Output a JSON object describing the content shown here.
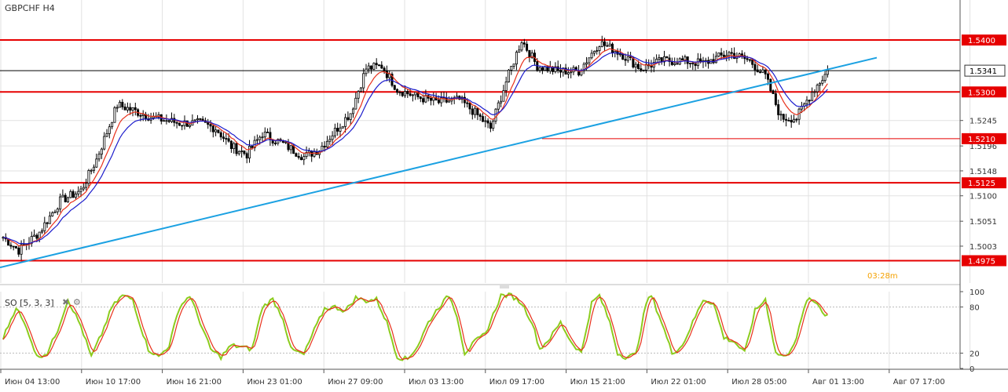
{
  "symbol_title": "GBPCHF H4",
  "timer": "03:28m",
  "indicator": {
    "label": "SO [5, 3, 3]",
    "close_icon": "close-icon",
    "gear_icon": "gear-icon"
  },
  "colors": {
    "grid": "#e2e2e2",
    "candle": "#000000",
    "ma_fast": "#e8301a",
    "ma_slow": "#1c1ccc",
    "level": "#e60000",
    "trendline": "#1ba1e2",
    "price_line": "#000000",
    "so_main": "#8ccc1e",
    "so_signal": "#e8301a",
    "timer": "#f4a100"
  },
  "chart_data": {
    "type": "candlestick",
    "title": "GBPCHF H4",
    "price_ylim": [
      1.4935,
      1.5465
    ],
    "y_ticks": [
      "1.5003",
      "1.5051",
      "1.5100",
      "1.5148",
      "1.5196",
      "1.5245"
    ],
    "x_ticks": [
      "Июн 04 13:00",
      "Июн 10 17:00",
      "Июн 16 21:00",
      "Июн 23 01:00",
      "Июн 27 09:00",
      "Июл 03 13:00",
      "Июл 09 17:00",
      "Июл 15 21:00",
      "Июл 22 01:00",
      "Июл 28 05:00",
      "Авг 01 13:00",
      "Авг 07 17:00"
    ],
    "current_price": {
      "label": "1.5341",
      "value": 1.5341
    },
    "levels": [
      {
        "label": "1.5400",
        "value": 1.54
      },
      {
        "label": "1.5300",
        "value": 1.53
      },
      {
        "label": "1.5210",
        "value": 1.521
      },
      {
        "label": "1.5125",
        "value": 1.5125
      },
      {
        "label": "1.4975",
        "value": 1.4975
      }
    ],
    "trendline": {
      "start": [
        0,
        1.4962
      ],
      "end": [
        1.0,
        1.5366
      ]
    },
    "anchors": [
      [
        0,
        1.502
      ],
      [
        6,
        1.4995
      ],
      [
        14,
        1.503
      ],
      [
        22,
        1.509
      ],
      [
        30,
        1.511
      ],
      [
        36,
        1.517
      ],
      [
        44,
        1.5275
      ],
      [
        50,
        1.5265
      ],
      [
        58,
        1.525
      ],
      [
        68,
        1.524
      ],
      [
        76,
        1.524
      ],
      [
        82,
        1.523
      ],
      [
        88,
        1.5195
      ],
      [
        94,
        1.518
      ],
      [
        100,
        1.522
      ],
      [
        108,
        1.52
      ],
      [
        116,
        1.5175
      ],
      [
        122,
        1.519
      ],
      [
        128,
        1.5225
      ],
      [
        134,
        1.526
      ],
      [
        140,
        1.5345
      ],
      [
        146,
        1.535
      ],
      [
        152,
        1.5305
      ],
      [
        160,
        1.529
      ],
      [
        168,
        1.528
      ],
      [
        176,
        1.5285
      ],
      [
        182,
        1.526
      ],
      [
        188,
        1.523
      ],
      [
        194,
        1.532
      ],
      [
        200,
        1.54
      ],
      [
        206,
        1.535
      ],
      [
        214,
        1.534
      ],
      [
        222,
        1.534
      ],
      [
        230,
        1.5395
      ],
      [
        238,
        1.5375
      ],
      [
        246,
        1.5345
      ],
      [
        254,
        1.536
      ],
      [
        262,
        1.536
      ],
      [
        270,
        1.5355
      ],
      [
        280,
        1.5375
      ],
      [
        288,
        1.536
      ],
      [
        294,
        1.533
      ],
      [
        300,
        1.525
      ],
      [
        306,
        1.525
      ],
      [
        312,
        1.53
      ],
      [
        318,
        1.534
      ]
    ],
    "so_ylim": [
      0,
      100
    ],
    "so_ticks": [
      0,
      20,
      80,
      100
    ],
    "so_levels": [
      20,
      80
    ],
    "so_main": [
      [
        0,
        40
      ],
      [
        5,
        80
      ],
      [
        10,
        45
      ],
      [
        13,
        15
      ],
      [
        17,
        20
      ],
      [
        21,
        50
      ],
      [
        25,
        90
      ],
      [
        30,
        55
      ],
      [
        34,
        15
      ],
      [
        38,
        45
      ],
      [
        42,
        80
      ],
      [
        46,
        95
      ],
      [
        50,
        90
      ],
      [
        53,
        55
      ],
      [
        56,
        25
      ],
      [
        60,
        15
      ],
      [
        64,
        30
      ],
      [
        68,
        80
      ],
      [
        72,
        95
      ],
      [
        76,
        60
      ],
      [
        80,
        25
      ],
      [
        84,
        15
      ],
      [
        88,
        30
      ],
      [
        92,
        28
      ],
      [
        96,
        25
      ],
      [
        100,
        80
      ],
      [
        104,
        90
      ],
      [
        108,
        65
      ],
      [
        111,
        25
      ],
      [
        116,
        18
      ],
      [
        120,
        50
      ],
      [
        124,
        78
      ],
      [
        128,
        80
      ],
      [
        132,
        75
      ],
      [
        136,
        92
      ],
      [
        140,
        88
      ],
      [
        144,
        90
      ],
      [
        148,
        60
      ],
      [
        152,
        15
      ],
      [
        156,
        12
      ],
      [
        160,
        30
      ],
      [
        164,
        60
      ],
      [
        168,
        80
      ],
      [
        172,
        95
      ],
      [
        175,
        70
      ],
      [
        178,
        20
      ],
      [
        182,
        35
      ],
      [
        186,
        45
      ],
      [
        192,
        95
      ],
      [
        196,
        95
      ],
      [
        200,
        85
      ],
      [
        204,
        60
      ],
      [
        207,
        25
      ],
      [
        211,
        40
      ],
      [
        215,
        60
      ],
      [
        219,
        35
      ],
      [
        223,
        20
      ],
      [
        227,
        85
      ],
      [
        230,
        95
      ],
      [
        234,
        60
      ],
      [
        237,
        20
      ],
      [
        240,
        15
      ],
      [
        244,
        18
      ],
      [
        248,
        85
      ],
      [
        250,
        95
      ],
      [
        254,
        60
      ],
      [
        258,
        20
      ],
      [
        262,
        30
      ],
      [
        266,
        60
      ],
      [
        270,
        90
      ],
      [
        274,
        85
      ],
      [
        278,
        40
      ],
      [
        282,
        35
      ],
      [
        286,
        20
      ],
      [
        290,
        75
      ],
      [
        294,
        90
      ],
      [
        298,
        20
      ],
      [
        302,
        15
      ],
      [
        306,
        40
      ],
      [
        310,
        90
      ],
      [
        314,
        85
      ],
      [
        317,
        70
      ]
    ]
  }
}
